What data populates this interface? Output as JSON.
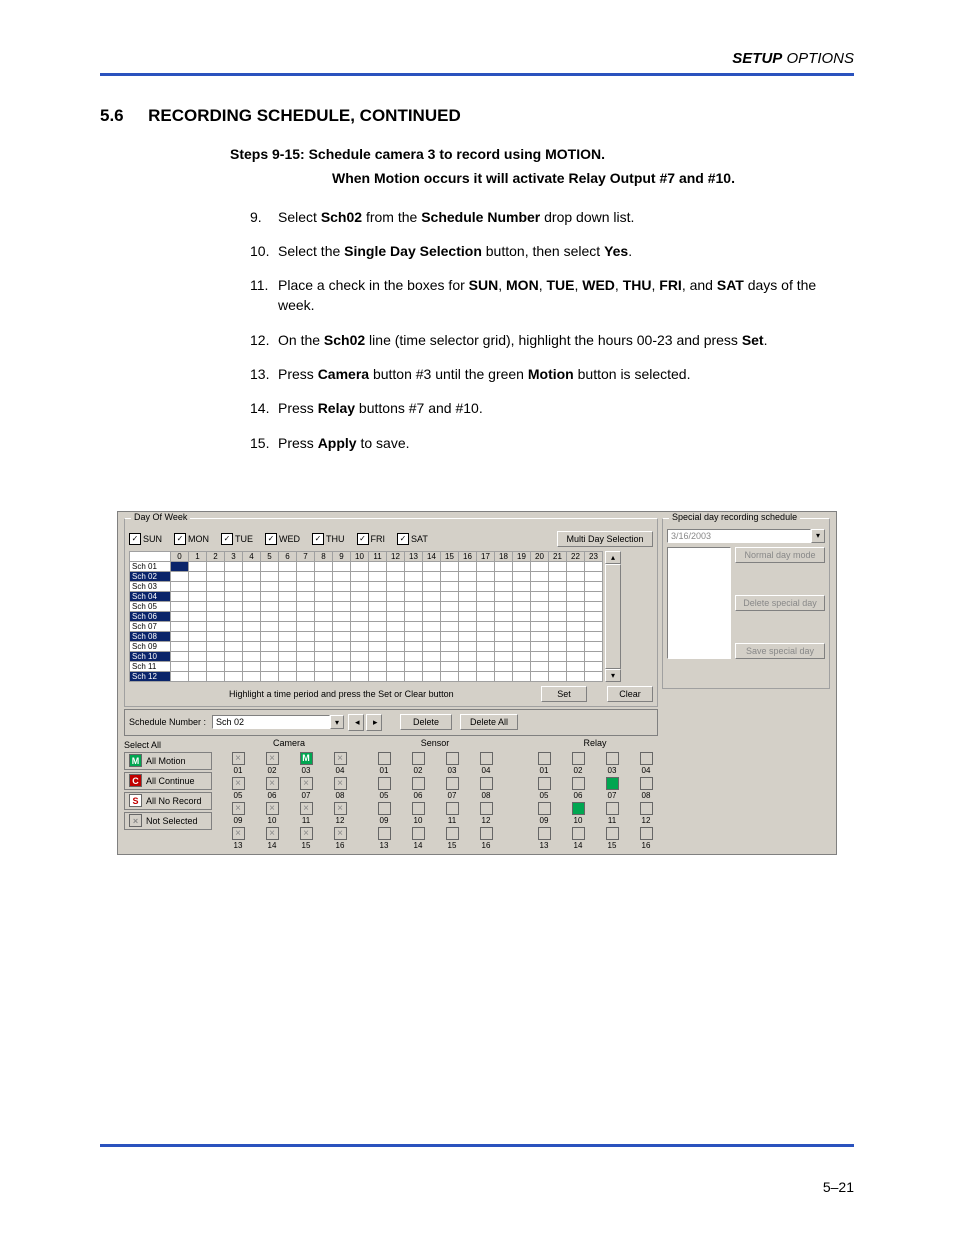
{
  "header": {
    "bold": "SETUP",
    "italic": "OPTIONS"
  },
  "section": {
    "num": "5.6",
    "title": "RECORDING SCHEDULE, CONTINUED"
  },
  "stepsHead1": "Steps 9-15:   Schedule camera 3 to record using MOTION.",
  "stepsHead2": "When Motion occurs it will activate Relay Output #7 and #10.",
  "steps": [
    {
      "n": "9.",
      "pre": "Select ",
      "b1": "Sch02",
      "mid": " from the ",
      "b2": "Schedule Number",
      "post": " drop down list."
    },
    {
      "n": "10.",
      "pre": "Select the ",
      "b1": "Single Day Selection",
      "mid": " button, then select ",
      "b2": "Yes",
      "post": "."
    },
    {
      "n": "11.",
      "html": "Place a check in the boxes for <b>SUN</b>, <b>MON</b>, <b>TUE</b>, <b>WED</b>, <b>THU</b>, <b>FRI</b>, and <b>SAT</b> days of the week."
    },
    {
      "n": "12.",
      "html": "On the <b>Sch02</b> line (time selector grid), highlight the hours 00-23 and press <b>Set</b>."
    },
    {
      "n": "13.",
      "html": "Press <b>Camera</b> button #3 until the green <b>Motion</b> button is selected."
    },
    {
      "n": "14.",
      "html": "Press <b>Relay</b> buttons #7 and #10."
    },
    {
      "n": "15.",
      "html": "Press <b>Apply</b> to save."
    }
  ],
  "ui": {
    "dow": {
      "legend": "Day Of Week",
      "days": [
        "SUN",
        "MON",
        "TUE",
        "WED",
        "THU",
        "FRI",
        "SAT"
      ],
      "multi": "Multi Day Selection"
    },
    "special": {
      "legend": "Special day recording schedule",
      "date": "3/16/2003",
      "normal": "Normal day mode",
      "del": "Delete special day",
      "save": "Save special day"
    },
    "gridHours": [
      "0",
      "1",
      "2",
      "3",
      "4",
      "5",
      "6",
      "7",
      "8",
      "9",
      "10",
      "11",
      "12",
      "13",
      "14",
      "15",
      "16",
      "17",
      "18",
      "19",
      "20",
      "21",
      "22",
      "23"
    ],
    "gridRows": [
      "Sch 01",
      "Sch 02",
      "Sch 03",
      "Sch 04",
      "Sch 05",
      "Sch 06",
      "Sch 07",
      "Sch 08",
      "Sch 09",
      "Sch 10",
      "Sch 11",
      "Sch 12"
    ],
    "gridRowsSel": [
      false,
      true,
      false,
      true,
      false,
      true,
      false,
      true,
      false,
      true,
      false,
      true
    ],
    "hint": "Highlight a time period and press the Set or Clear button",
    "set": "Set",
    "clear": "Clear",
    "schNumLbl": "Schedule Number :",
    "schNumVal": "Sch 02",
    "delete": "Delete",
    "deleteAll": "Delete All",
    "selectAllLbl": "Select All",
    "selAll": [
      {
        "icon": "M",
        "bg": "#00a651",
        "fg": "#fff",
        "label": "All Motion"
      },
      {
        "icon": "C",
        "bg": "#c00000",
        "fg": "#fff",
        "label": "All Continue"
      },
      {
        "icon": "S",
        "bg": "#ffffff",
        "fg": "#c00000",
        "label": "All No Record"
      },
      {
        "icon": "×",
        "bg": "#d4d0c8",
        "fg": "#888",
        "label": "Not Selected"
      }
    ],
    "cameraLbl": "Camera",
    "sensorLbl": "Sensor",
    "relayLbl": "Relay",
    "numbers": [
      "01",
      "02",
      "03",
      "04",
      "05",
      "06",
      "07",
      "08",
      "09",
      "10",
      "11",
      "12",
      "13",
      "14",
      "15",
      "16"
    ],
    "cameraStates": [
      "x",
      "x",
      "M",
      "x",
      "x",
      "x",
      "x",
      "x",
      "x",
      "x",
      "x",
      "x",
      "x",
      "x",
      "x",
      "x"
    ],
    "relayGreen": [
      7,
      10
    ],
    "colors": {
      "motion": "#00a651",
      "xbox": "#d4d0c8"
    }
  },
  "pageNum": "5–21"
}
